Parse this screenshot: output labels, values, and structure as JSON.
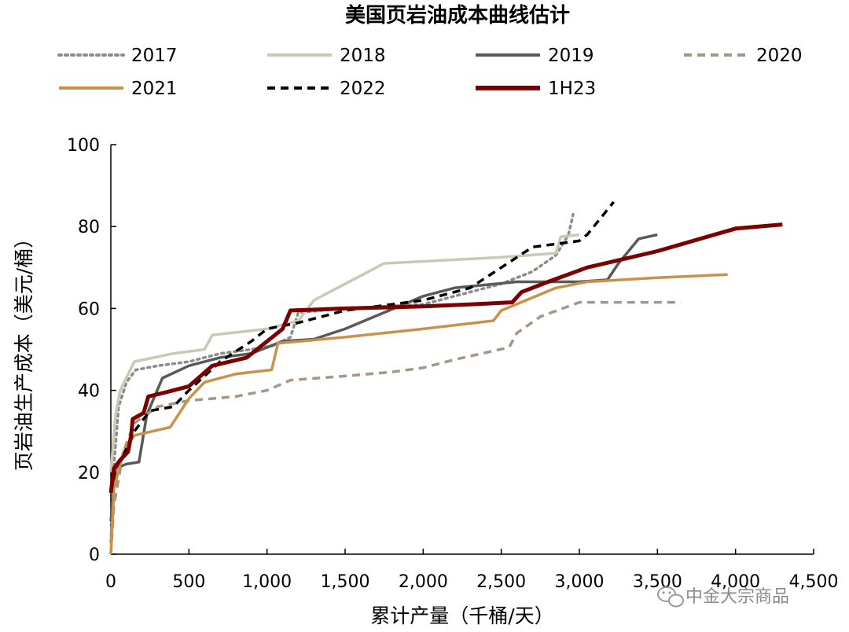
{
  "chart_data": {
    "type": "line",
    "title": "美国页岩油成本曲线估计",
    "xlabel": "累计产量（千桶/天）",
    "ylabel": "页岩油生产成本（美元/桶）",
    "xlim": [
      0,
      4500
    ],
    "ylim": [
      0,
      100
    ],
    "x_ticks": [
      0,
      500,
      1000,
      1500,
      2000,
      2500,
      3000,
      3500,
      4000,
      4500
    ],
    "x_tick_labels": [
      "0",
      "500",
      "1,000",
      "1,500",
      "2,000",
      "2,500",
      "3,000",
      "3,500",
      "4,000",
      "4,500"
    ],
    "y_ticks": [
      0,
      20,
      40,
      60,
      80,
      100
    ],
    "y_tick_labels": [
      "0",
      "20",
      "40",
      "60",
      "80",
      "100"
    ],
    "grid": false,
    "legend_position": "top",
    "series": [
      {
        "name": "2017",
        "color": "#8c8c8c",
        "style": "dotted",
        "points": [
          [
            0,
            3
          ],
          [
            20,
            22
          ],
          [
            50,
            36
          ],
          [
            100,
            42
          ],
          [
            160,
            45
          ],
          [
            300,
            46
          ],
          [
            500,
            47
          ],
          [
            700,
            49
          ],
          [
            900,
            50
          ],
          [
            1050,
            51
          ],
          [
            1150,
            53
          ],
          [
            1200,
            59
          ],
          [
            1500,
            60
          ],
          [
            2000,
            61
          ],
          [
            2500,
            66
          ],
          [
            2700,
            69
          ],
          [
            2850,
            73
          ],
          [
            2930,
            78
          ],
          [
            2960,
            83
          ]
        ]
      },
      {
        "name": "2018",
        "color": "#c9c9b8",
        "style": "solid",
        "points": [
          [
            0,
            20
          ],
          [
            30,
            34
          ],
          [
            60,
            40
          ],
          [
            150,
            47
          ],
          [
            400,
            49
          ],
          [
            600,
            50
          ],
          [
            650,
            53.5
          ],
          [
            1000,
            55
          ],
          [
            1200,
            57
          ],
          [
            1300,
            62
          ],
          [
            1550,
            67
          ],
          [
            1750,
            71
          ],
          [
            2000,
            71.5
          ],
          [
            2500,
            72.5
          ],
          [
            2850,
            73.5
          ],
          [
            2880,
            77.5
          ],
          [
            3000,
            78
          ]
        ]
      },
      {
        "name": "2019",
        "color": "#595959",
        "style": "solid",
        "points": [
          [
            0,
            8
          ],
          [
            30,
            21
          ],
          [
            100,
            22
          ],
          [
            180,
            22.5
          ],
          [
            230,
            34
          ],
          [
            330,
            43
          ],
          [
            500,
            46
          ],
          [
            700,
            48
          ],
          [
            900,
            49
          ],
          [
            1100,
            52
          ],
          [
            1300,
            52.5
          ],
          [
            1500,
            55
          ],
          [
            2000,
            63
          ],
          [
            2200,
            65
          ],
          [
            2600,
            66.5
          ],
          [
            3000,
            66.5
          ],
          [
            3180,
            67
          ],
          [
            3250,
            71
          ],
          [
            3380,
            77
          ],
          [
            3500,
            78
          ]
        ]
      },
      {
        "name": "2020",
        "color": "#a89585",
        "style": "dashed",
        "points": [
          [
            0,
            0
          ],
          [
            20,
            12
          ],
          [
            80,
            25
          ],
          [
            150,
            32
          ],
          [
            300,
            36
          ],
          [
            500,
            37.5
          ],
          [
            800,
            38.5
          ],
          [
            1000,
            40
          ],
          [
            1150,
            42.5
          ],
          [
            1500,
            43.5
          ],
          [
            1800,
            44.5
          ],
          [
            2000,
            45.5
          ],
          [
            2200,
            47.5
          ],
          [
            2550,
            50.5
          ],
          [
            2600,
            54
          ],
          [
            2750,
            58
          ],
          [
            3000,
            61.5
          ],
          [
            3300,
            61.5
          ],
          [
            3650,
            61.5
          ]
        ]
      },
      {
        "name": "2021",
        "color": "#c8924a",
        "style": "solid",
        "points": [
          [
            0,
            0
          ],
          [
            20,
            16
          ],
          [
            80,
            25
          ],
          [
            150,
            29
          ],
          [
            380,
            31
          ],
          [
            500,
            38
          ],
          [
            600,
            42
          ],
          [
            800,
            44
          ],
          [
            1030,
            45
          ],
          [
            1070,
            51.5
          ],
          [
            1500,
            53
          ],
          [
            2000,
            55
          ],
          [
            2450,
            57
          ],
          [
            2500,
            59.5
          ],
          [
            2850,
            65
          ],
          [
            3050,
            66.5
          ],
          [
            3500,
            67.5
          ],
          [
            3950,
            68.3
          ]
        ]
      },
      {
        "name": "2022",
        "color": "#000000",
        "style": "dashed",
        "points": [
          [
            0,
            15
          ],
          [
            30,
            21
          ],
          [
            80,
            24
          ],
          [
            150,
            30
          ],
          [
            250,
            35
          ],
          [
            400,
            36
          ],
          [
            500,
            40
          ],
          [
            700,
            47
          ],
          [
            900,
            52
          ],
          [
            1000,
            55
          ],
          [
            1200,
            56.5
          ],
          [
            1500,
            59.5
          ],
          [
            2000,
            62
          ],
          [
            2300,
            65
          ],
          [
            2500,
            70
          ],
          [
            2700,
            75
          ],
          [
            3000,
            76.5
          ],
          [
            3050,
            78
          ],
          [
            3220,
            86
          ]
        ]
      },
      {
        "name": "1H23",
        "color": "#7b0000",
        "style": "solid",
        "points": [
          [
            0,
            15
          ],
          [
            20,
            21
          ],
          [
            60,
            23
          ],
          [
            110,
            25
          ],
          [
            130,
            29
          ],
          [
            140,
            33
          ],
          [
            210,
            34.5
          ],
          [
            240,
            38.5
          ],
          [
            350,
            39.5
          ],
          [
            500,
            41
          ],
          [
            650,
            46
          ],
          [
            870,
            48
          ],
          [
            1100,
            55
          ],
          [
            1150,
            59.5
          ],
          [
            1500,
            60
          ],
          [
            2000,
            60.5
          ],
          [
            2300,
            61
          ],
          [
            2570,
            61.5
          ],
          [
            2630,
            64
          ],
          [
            2800,
            66.5
          ],
          [
            3050,
            70
          ],
          [
            3500,
            74
          ],
          [
            4000,
            79.5
          ],
          [
            4300,
            80.5
          ]
        ]
      }
    ]
  },
  "watermark": {
    "text": "中金大宗商品",
    "icon": "wechat-icon"
  }
}
